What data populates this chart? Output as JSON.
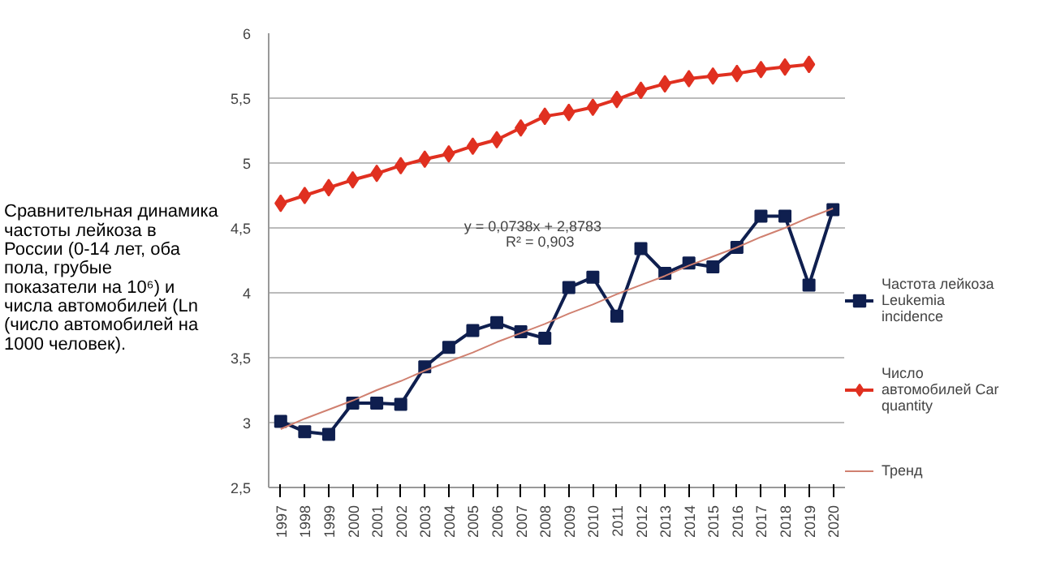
{
  "chart_data": {
    "type": "line",
    "title": "Сравнительная динамика частоты лейкоза в России (0-14 лет, оба пола, грубые показатели на 10⁶) и числа автомобилей (Ln (число автомобилей на 1000 человек).",
    "categories": [
      "1997",
      "1998",
      "1999",
      "2000",
      "2001",
      "2002",
      "2003",
      "2004",
      "2005",
      "2006",
      "2007",
      "2008",
      "2009",
      "2010",
      "2011",
      "2012",
      "2013",
      "2014",
      "2015",
      "2016",
      "2017",
      "2018",
      "2019",
      "2020"
    ],
    "series": [
      {
        "name": "Частота лейкоза Leukemia incidence",
        "color": "#0f1f4f",
        "marker": "square",
        "values": [
          3.01,
          2.93,
          2.91,
          3.15,
          3.15,
          3.14,
          3.43,
          3.58,
          3.71,
          3.77,
          3.7,
          3.65,
          4.04,
          4.12,
          3.82,
          4.34,
          4.15,
          4.23,
          4.2,
          4.35,
          4.59,
          4.59,
          4.06,
          4.64
        ]
      },
      {
        "name": "Число автомобилей Car quantity",
        "color": "#e03020",
        "marker": "diamond",
        "values": [
          4.69,
          4.75,
          4.81,
          4.87,
          4.92,
          4.98,
          5.03,
          5.07,
          5.13,
          5.18,
          5.27,
          5.36,
          5.39,
          5.43,
          5.49,
          5.56,
          5.61,
          5.65,
          5.67,
          5.69,
          5.72,
          5.74,
          5.76,
          null
        ]
      },
      {
        "name": "Тренд",
        "color": "#d08070",
        "marker": "none",
        "values": [
          2.95,
          3.03,
          3.1,
          3.17,
          3.25,
          3.32,
          3.4,
          3.47,
          3.54,
          3.62,
          3.69,
          3.76,
          3.84,
          3.91,
          3.99,
          4.06,
          4.13,
          4.21,
          4.28,
          4.35,
          4.43,
          4.5,
          4.58,
          4.65
        ]
      }
    ],
    "ylim": [
      2.5,
      6
    ],
    "yticks": [
      {
        "value": 2.5,
        "label": "2,5"
      },
      {
        "value": 3,
        "label": "3"
      },
      {
        "value": 3.5,
        "label": "3,5"
      },
      {
        "value": 4,
        "label": "4"
      },
      {
        "value": 4.5,
        "label": "4,5"
      },
      {
        "value": 5,
        "label": "5"
      },
      {
        "value": 5.5,
        "label": "5,5"
      },
      {
        "value": 6,
        "label": "6"
      }
    ],
    "grid": "y",
    "legend": "right",
    "annotations": [
      "y = 0,0738x + 2,8783",
      "R² = 0,903"
    ]
  }
}
